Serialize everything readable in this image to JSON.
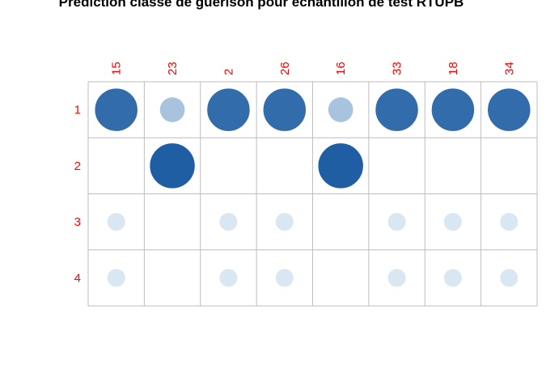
{
  "chart_data": {
    "type": "heatmap",
    "title": "Prédiction classe de guérison pour échantillon de test RTUPB",
    "columns": [
      "15",
      "23",
      "2",
      "26",
      "16",
      "33",
      "18",
      "34"
    ],
    "rows": [
      "1",
      "2",
      "3",
      "4"
    ],
    "values": [
      [
        0.9,
        0.3,
        0.9,
        0.9,
        0.3,
        0.9,
        0.9,
        0.9
      ],
      [
        0.0,
        1.0,
        0.0,
        0.0,
        1.0,
        0.0,
        0.0,
        0.0
      ],
      [
        0.05,
        0.0,
        0.05,
        0.05,
        0.0,
        0.05,
        0.05,
        0.05
      ],
      [
        0.05,
        0.0,
        0.05,
        0.05,
        0.0,
        0.05,
        0.05,
        0.05
      ]
    ],
    "grid": true,
    "label_color": "#ff0000",
    "grid_color": "#bebebe",
    "circle_color_low": "#e3eef6",
    "circle_color_high": "#1f5ea3"
  }
}
